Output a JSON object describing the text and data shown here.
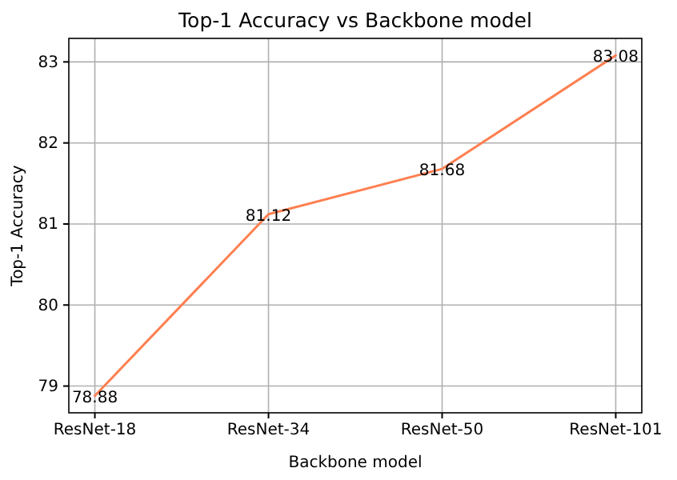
{
  "chart_data": {
    "type": "line",
    "title": "Top-1 Accuracy vs Backbone model",
    "xlabel": "Backbone model",
    "ylabel": "Top-1 Accuracy",
    "categories": [
      "ResNet-18",
      "ResNet-34",
      "ResNet-50",
      "ResNet-101"
    ],
    "series": [
      {
        "color": "#ff7f50",
        "values": [
          78.88,
          81.12,
          81.68,
          83.08
        ]
      }
    ],
    "ylim": [
      78.67,
      83.29
    ],
    "yticks": [
      79,
      80,
      81,
      82,
      83
    ],
    "grid": true,
    "data_labels": true
  }
}
